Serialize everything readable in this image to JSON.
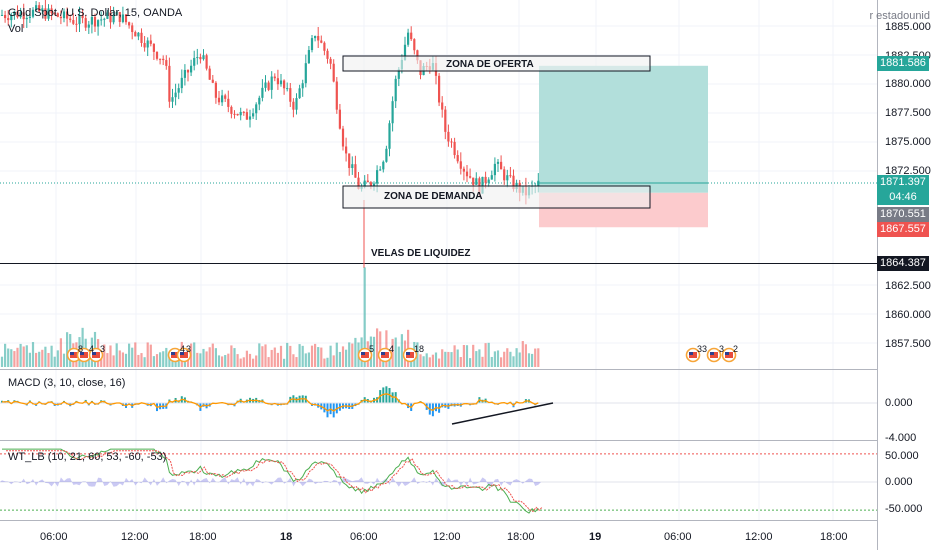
{
  "header": {
    "symbol_title": "Gold Spot / U.S. Dollar, 15, OANDA",
    "volume_label": "Vol",
    "symbol_hint": "r estadounid"
  },
  "price_axis": {
    "ticks": [
      "1885.000",
      "1882.500",
      "1880.000",
      "1877.500",
      "1875.000",
      "1872.500",
      "1862.500",
      "1860.000",
      "1857.500"
    ],
    "tags": {
      "upper": "1881.586",
      "current": "1871.397",
      "countdown": "04:46",
      "mid": "1870.551",
      "lower": "1867.557",
      "line": "1864.387"
    }
  },
  "macd_axis": {
    "ticks": [
      "0.000",
      "-4.000"
    ]
  },
  "wt_axis": {
    "ticks": [
      "50.000",
      "0.000",
      "-50.000"
    ]
  },
  "time_axis": {
    "ticks": [
      "06:00",
      "12:00",
      "18:00",
      "18",
      "06:00",
      "12:00",
      "18:00",
      "19",
      "06:00",
      "12:00",
      "18:00"
    ]
  },
  "annotations": {
    "supply_zone": "ZONA DE OFERTA",
    "demand_zone": "ZONA DE DEMANDA",
    "liquidity_candles": "VELAS DE LIQUIDEZ"
  },
  "indicators": {
    "macd_title": "MACD (3, 10, close, 16)",
    "wt_title": "WT_LB (10, 21, 60, 53, -60, -53)"
  },
  "events": [
    {
      "count": "8"
    },
    {
      "count": "4"
    },
    {
      "count": "3"
    },
    {
      "count": "4"
    },
    {
      "count": "3"
    },
    {
      "count": "5"
    },
    {
      "count": "4"
    },
    {
      "count": "18"
    },
    {
      "count": "33"
    },
    {
      "count": "3"
    },
    {
      "count": "2"
    }
  ],
  "colors": {
    "bull": "#26a69a",
    "bear": "#ef5350",
    "profit_zone": "#b2dfdb",
    "loss_zone": "#fccbcd",
    "upper_tag": "#26a69a",
    "mid_tag": "#787b86",
    "lower_tag": "#ef5350",
    "line_tag": "#131722"
  }
}
